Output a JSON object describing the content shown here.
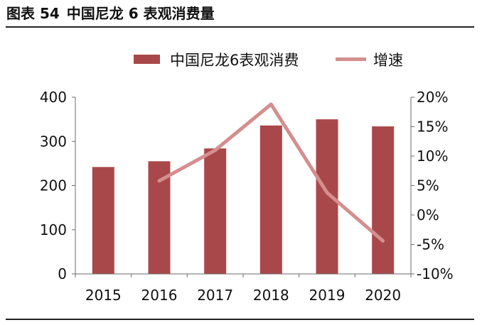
{
  "figure": {
    "label": "图表 54",
    "title": "中国尼龙 6 表观消费量"
  },
  "colors": {
    "bar": "#a9484a",
    "line": "#d48e8e",
    "axis": "#6b6b6b",
    "rule": "#222222"
  },
  "chart_data": {
    "type": "bar",
    "title": "中国尼龙 6 表观消费量",
    "categories": [
      "2015",
      "2016",
      "2017",
      "2018",
      "2019",
      "2020"
    ],
    "series": [
      {
        "name": "中国尼龙6表观消费",
        "type": "bar",
        "axis": "left",
        "values": [
          242,
          255,
          284,
          336,
          350,
          334
        ]
      },
      {
        "name": "增速",
        "type": "line",
        "axis": "right",
        "values": [
          null,
          5.8,
          11.0,
          18.8,
          3.8,
          -4.4
        ]
      }
    ],
    "y_left": {
      "min": 0,
      "max": 400,
      "ticks": [
        0,
        100,
        200,
        300,
        400
      ],
      "tick_labels": [
        "0",
        "100",
        "200",
        "300",
        "400"
      ]
    },
    "y_right": {
      "min": -10,
      "max": 20,
      "ticks": [
        -10,
        -5,
        0,
        5,
        10,
        15,
        20
      ],
      "tick_labels": [
        "-10%",
        "-5%",
        "0%",
        "5%",
        "10%",
        "15%",
        "20%"
      ]
    },
    "legend": "top-center",
    "grid": false
  }
}
